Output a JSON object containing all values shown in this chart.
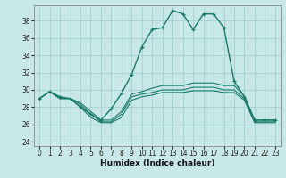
{
  "xlabel": "Humidex (Indice chaleur)",
  "xlim": [
    -0.5,
    23.5
  ],
  "ylim": [
    23.5,
    39.8
  ],
  "yticks": [
    24,
    26,
    28,
    30,
    32,
    34,
    36,
    38
  ],
  "xticks": [
    0,
    1,
    2,
    3,
    4,
    5,
    6,
    7,
    8,
    9,
    10,
    11,
    12,
    13,
    14,
    15,
    16,
    17,
    18,
    19,
    20,
    21,
    22,
    23
  ],
  "bg_color": "#c8e8e8",
  "grid_color": "#9ecece",
  "line_color": "#1a7a6a",
  "series_main": [
    29.0,
    29.8,
    29.2,
    29.0,
    28.0,
    27.2,
    26.5,
    27.8,
    29.6,
    31.8,
    35.0,
    37.0,
    37.2,
    39.2,
    38.8,
    37.0,
    38.8,
    38.8,
    37.2,
    31.0,
    29.2,
    26.5,
    26.5,
    26.5
  ],
  "series_2": [
    29.0,
    29.8,
    29.0,
    29.0,
    28.5,
    27.5,
    26.5,
    26.5,
    27.5,
    29.5,
    29.8,
    30.2,
    30.5,
    30.5,
    30.5,
    30.8,
    30.8,
    30.8,
    30.5,
    30.5,
    29.3,
    26.5,
    26.5,
    26.5
  ],
  "series_3": [
    29.0,
    29.8,
    29.0,
    29.0,
    28.3,
    27.2,
    26.3,
    26.3,
    27.2,
    29.2,
    29.5,
    29.7,
    30.0,
    30.0,
    30.0,
    30.3,
    30.3,
    30.3,
    30.0,
    30.0,
    29.0,
    26.3,
    26.3,
    26.3
  ],
  "series_4": [
    29.0,
    29.8,
    29.0,
    29.0,
    28.0,
    26.8,
    26.2,
    26.2,
    26.8,
    28.8,
    29.2,
    29.4,
    29.7,
    29.7,
    29.7,
    29.9,
    29.9,
    29.9,
    29.7,
    29.7,
    28.8,
    26.2,
    26.2,
    26.2
  ]
}
